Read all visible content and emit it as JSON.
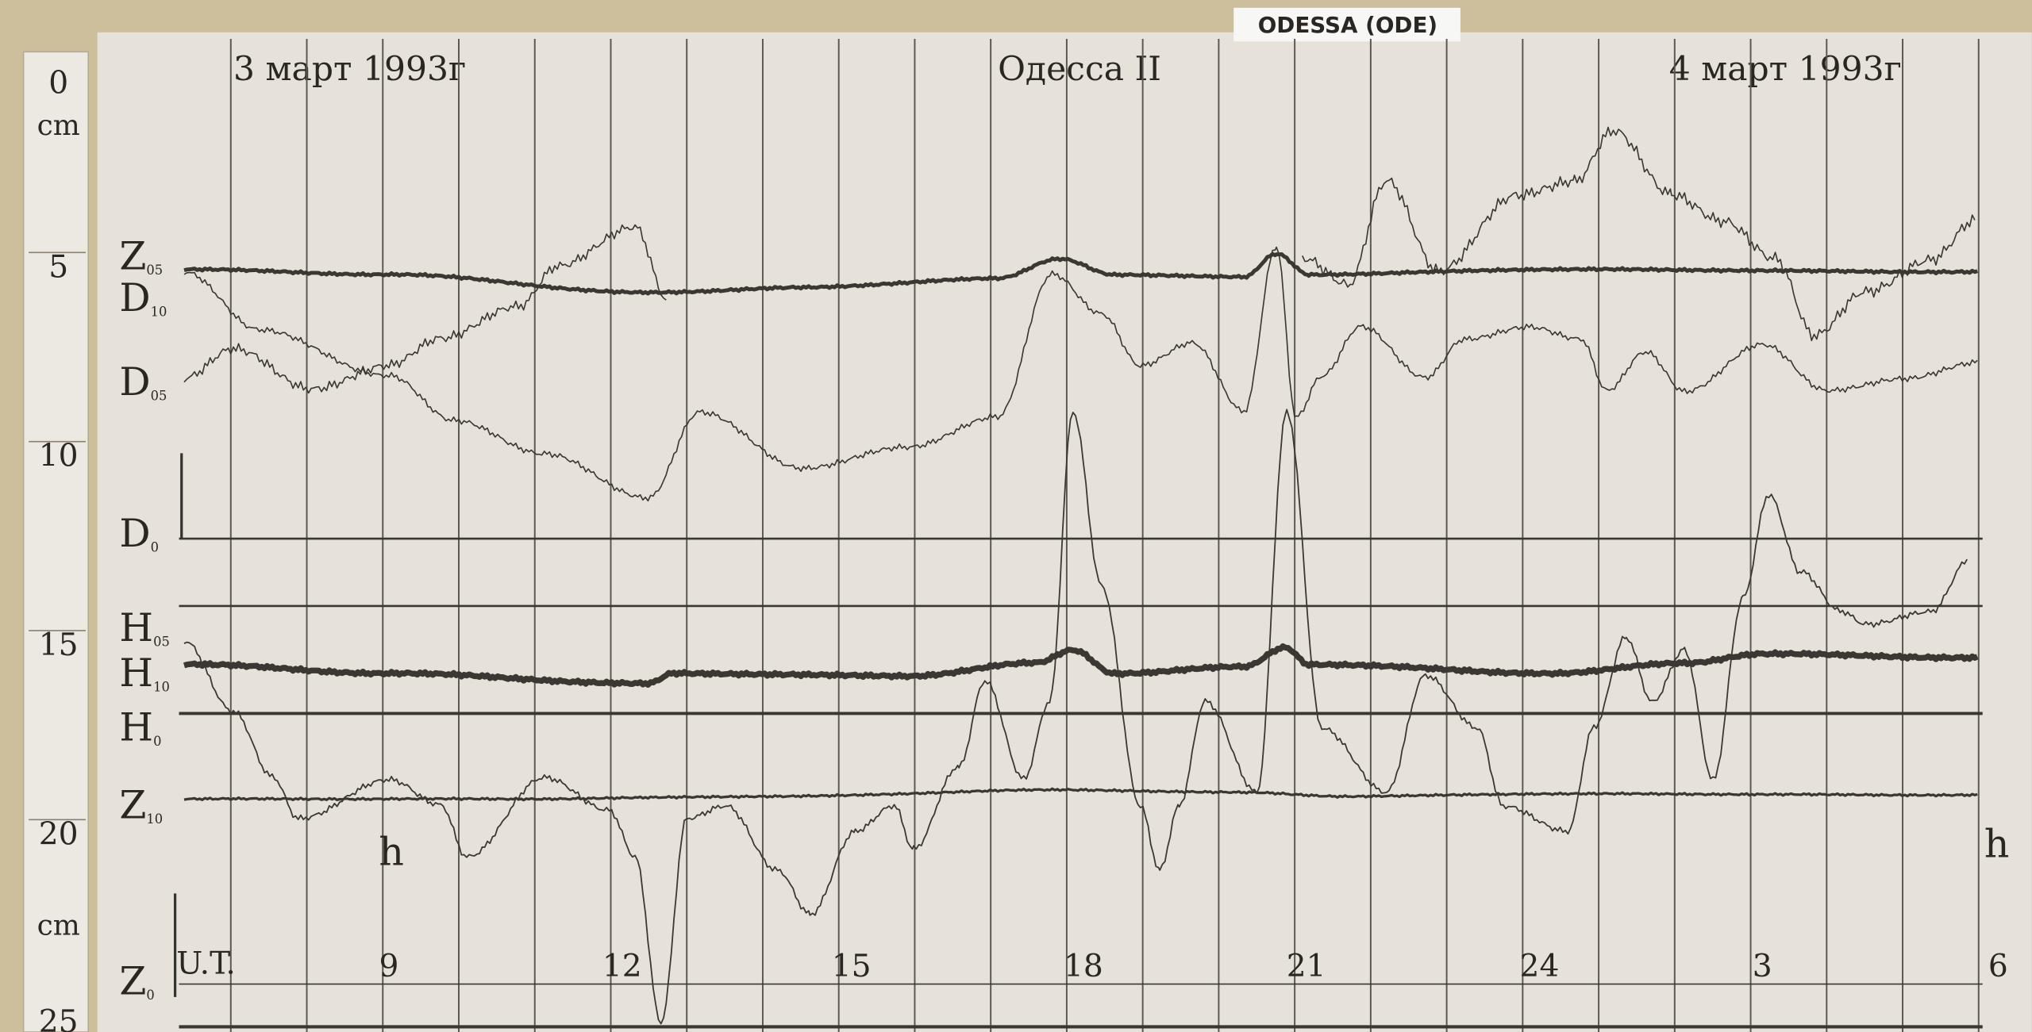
{
  "tag": "ODESSA (ODE)",
  "header": {
    "left": "3 март 1993г",
    "center": "Одесса II",
    "right": "4 март 1993г"
  },
  "ruler": {
    "top": {
      "number": "0",
      "unit": "cm"
    },
    "marks": [
      "5",
      "10",
      "15",
      "20"
    ],
    "bottom": {
      "unit": "cm",
      "number": "25"
    }
  },
  "traces": [
    {
      "letter": "Z",
      "sub": "05"
    },
    {
      "letter": "D",
      "sub": "10"
    },
    {
      "letter": "D",
      "sub": "05"
    },
    {
      "letter": "D",
      "sub": "0"
    },
    {
      "letter": "H",
      "sub": "05"
    },
    {
      "letter": "H",
      "sub": "10"
    },
    {
      "letter": "H",
      "sub": "0"
    },
    {
      "letter": "Z",
      "sub": "10"
    },
    {
      "letter": "Z",
      "sub": "0"
    }
  ],
  "time_axis": {
    "label": "U.T.",
    "hours": [
      "9",
      "12",
      "15",
      "18",
      "21",
      "24",
      "3",
      "6"
    ],
    "unit_left": "h",
    "unit_right": "h"
  }
}
